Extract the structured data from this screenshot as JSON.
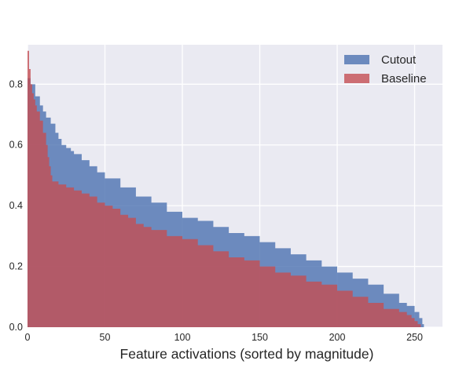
{
  "chart_data": {
    "type": "area",
    "title": "",
    "xlabel": "Feature activations (sorted by magnitude)",
    "ylabel": "",
    "xlim": [
      0,
      268
    ],
    "ylim": [
      0,
      0.93
    ],
    "x_ticks": [
      0,
      50,
      100,
      150,
      200,
      250
    ],
    "y_ticks": [
      0.0,
      0.2,
      0.4,
      0.6,
      0.8
    ],
    "grid": true,
    "legend_position": "top-right",
    "step": true,
    "series": [
      {
        "name": "Cutout",
        "color": "#4c72b0",
        "points": [
          [
            0,
            0.82
          ],
          [
            2,
            0.8
          ],
          [
            5,
            0.76
          ],
          [
            8,
            0.73
          ],
          [
            10,
            0.71
          ],
          [
            12,
            0.69
          ],
          [
            15,
            0.67
          ],
          [
            18,
            0.64
          ],
          [
            20,
            0.62
          ],
          [
            22,
            0.6
          ],
          [
            25,
            0.59
          ],
          [
            28,
            0.58
          ],
          [
            30,
            0.57
          ],
          [
            35,
            0.55
          ],
          [
            40,
            0.53
          ],
          [
            45,
            0.51
          ],
          [
            50,
            0.49
          ],
          [
            60,
            0.46
          ],
          [
            70,
            0.43
          ],
          [
            80,
            0.41
          ],
          [
            90,
            0.38
          ],
          [
            100,
            0.36
          ],
          [
            110,
            0.35
          ],
          [
            120,
            0.33
          ],
          [
            130,
            0.31
          ],
          [
            140,
            0.3
          ],
          [
            150,
            0.28
          ],
          [
            160,
            0.26
          ],
          [
            170,
            0.24
          ],
          [
            180,
            0.22
          ],
          [
            190,
            0.2
          ],
          [
            200,
            0.18
          ],
          [
            210,
            0.16
          ],
          [
            220,
            0.14
          ],
          [
            230,
            0.11
          ],
          [
            240,
            0.08
          ],
          [
            245,
            0.07
          ],
          [
            250,
            0.05
          ],
          [
            253,
            0.03
          ],
          [
            255,
            0.01
          ],
          [
            256,
            0.0
          ]
        ]
      },
      {
        "name": "Baseline",
        "color": "#c44e52",
        "points": [
          [
            0,
            0.91
          ],
          [
            1,
            0.85
          ],
          [
            2,
            0.8
          ],
          [
            3,
            0.77
          ],
          [
            4,
            0.75
          ],
          [
            5,
            0.73
          ],
          [
            6,
            0.71
          ],
          [
            8,
            0.68
          ],
          [
            10,
            0.64
          ],
          [
            12,
            0.6
          ],
          [
            13,
            0.56
          ],
          [
            14,
            0.53
          ],
          [
            15,
            0.5
          ],
          [
            16,
            0.48
          ],
          [
            20,
            0.47
          ],
          [
            25,
            0.46
          ],
          [
            30,
            0.45
          ],
          [
            35,
            0.44
          ],
          [
            40,
            0.43
          ],
          [
            45,
            0.41
          ],
          [
            50,
            0.4
          ],
          [
            55,
            0.39
          ],
          [
            60,
            0.37
          ],
          [
            65,
            0.36
          ],
          [
            70,
            0.34
          ],
          [
            75,
            0.33
          ],
          [
            80,
            0.32
          ],
          [
            90,
            0.3
          ],
          [
            100,
            0.29
          ],
          [
            110,
            0.27
          ],
          [
            120,
            0.25
          ],
          [
            130,
            0.23
          ],
          [
            140,
            0.22
          ],
          [
            150,
            0.2
          ],
          [
            160,
            0.18
          ],
          [
            170,
            0.17
          ],
          [
            180,
            0.15
          ],
          [
            190,
            0.14
          ],
          [
            200,
            0.12
          ],
          [
            210,
            0.1
          ],
          [
            220,
            0.08
          ],
          [
            230,
            0.06
          ],
          [
            240,
            0.05
          ],
          [
            245,
            0.04
          ],
          [
            248,
            0.03
          ],
          [
            250,
            0.02
          ],
          [
            252,
            0.01
          ],
          [
            254,
            0.0
          ]
        ]
      }
    ]
  }
}
